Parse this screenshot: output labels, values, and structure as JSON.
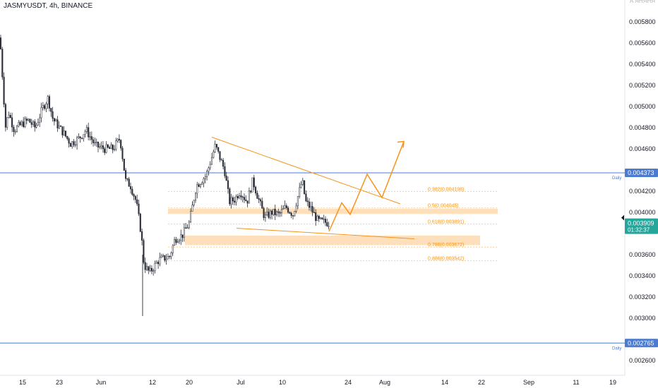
{
  "header": {
    "symbol": "JASMYUSDT, 4h, BINANCE",
    "top_right_fragment": "A ЯНЯНЯ"
  },
  "colors": {
    "up": "#26a69a",
    "down": "#ef5350",
    "candle": "#2a2e39",
    "drawing": "#f7931a",
    "zone": "#fddcb5",
    "horizontal_line": "#4a7bd0",
    "price_badge": "#26a69a"
  },
  "chart_data": {
    "type": "candlestick",
    "symbol": "JASMYUSDT",
    "interval": "4h",
    "exchange": "BINANCE",
    "ylim": [
      0.0025,
      0.0059
    ],
    "y_ticks": [
      "0.005800",
      "0.005600",
      "0.005400",
      "0.005200",
      "0.005000",
      "0.004800",
      "0.004600",
      "0.004200",
      "0.004000",
      "0.003600",
      "0.003400",
      "0.003200",
      "0.003000",
      "0.002600"
    ],
    "x_ticks": [
      "15",
      "23",
      "Jun",
      "12",
      "20",
      "Jul",
      "10",
      "24",
      "Aug",
      "14",
      "22",
      "Sep",
      "11",
      "19"
    ],
    "grid": false,
    "price_path": [
      {
        "t": 0,
        "p": 0.00565
      },
      {
        "t": 8,
        "p": 0.0048
      },
      {
        "t": 12,
        "p": 0.00495
      },
      {
        "t": 20,
        "p": 0.00478
      },
      {
        "t": 30,
        "p": 0.00483
      },
      {
        "t": 40,
        "p": 0.00487
      },
      {
        "t": 50,
        "p": 0.0048
      },
      {
        "t": 60,
        "p": 0.00498
      },
      {
        "t": 68,
        "p": 0.00508
      },
      {
        "t": 75,
        "p": 0.00488
      },
      {
        "t": 90,
        "p": 0.00475
      },
      {
        "t": 100,
        "p": 0.00465
      },
      {
        "t": 112,
        "p": 0.0047
      },
      {
        "t": 122,
        "p": 0.00478
      },
      {
        "t": 135,
        "p": 0.00463
      },
      {
        "t": 148,
        "p": 0.0046
      },
      {
        "t": 160,
        "p": 0.0046
      },
      {
        "t": 170,
        "p": 0.0047
      },
      {
        "t": 178,
        "p": 0.0043
      },
      {
        "t": 185,
        "p": 0.00425
      },
      {
        "t": 193,
        "p": 0.0041
      },
      {
        "t": 200,
        "p": 0.0038
      },
      {
        "t": 204,
        "p": 0.0035
      },
      {
        "t": 212,
        "p": 0.00343
      },
      {
        "t": 225,
        "p": 0.00355
      },
      {
        "t": 240,
        "p": 0.00358
      },
      {
        "t": 248,
        "p": 0.00375
      },
      {
        "t": 258,
        "p": 0.00378
      },
      {
        "t": 268,
        "p": 0.0039
      },
      {
        "t": 278,
        "p": 0.00425
      },
      {
        "t": 292,
        "p": 0.00435
      },
      {
        "t": 305,
        "p": 0.00463
      },
      {
        "t": 318,
        "p": 0.0044
      },
      {
        "t": 325,
        "p": 0.0041
      },
      {
        "t": 332,
        "p": 0.00412
      },
      {
        "t": 340,
        "p": 0.0042
      },
      {
        "t": 350,
        "p": 0.0041
      },
      {
        "t": 358,
        "p": 0.0043
      },
      {
        "t": 365,
        "p": 0.00415
      },
      {
        "t": 375,
        "p": 0.00395
      },
      {
        "t": 385,
        "p": 0.004
      },
      {
        "t": 395,
        "p": 0.00398
      },
      {
        "t": 405,
        "p": 0.00405
      },
      {
        "t": 415,
        "p": 0.00398
      },
      {
        "t": 428,
        "p": 0.0043
      },
      {
        "t": 433,
        "p": 0.0041
      },
      {
        "t": 440,
        "p": 0.00404
      },
      {
        "t": 450,
        "p": 0.00392
      },
      {
        "t": 466,
        "p": 0.0039
      }
    ],
    "spike_low": 0.00302,
    "horizontal_lines": [
      {
        "price": 0.004373,
        "price_label": "0.004373",
        "label": "Daily"
      },
      {
        "price": 0.002765,
        "price_label": "0.002765",
        "label": "Daily"
      }
    ],
    "current_price": {
      "price": 0.003909,
      "price_label": "0.003909",
      "countdown": "01:32:37"
    },
    "fib_levels": [
      {
        "price": 0.004198,
        "label": "0.382(0.004198)"
      },
      {
        "price": 0.004045,
        "label": "0.5(0.004045)"
      },
      {
        "price": 0.003891,
        "label": "0.618(0.003891)"
      },
      {
        "price": 0.003672,
        "label": "0.786(0.003672)"
      },
      {
        "price": 0.003542,
        "label": "0.886(0.003542)"
      }
    ],
    "zones": [
      {
        "y_low": 0.003985,
        "y_high": 0.004035,
        "x_start": 238,
        "x_end": 705
      },
      {
        "y_low": 0.00369,
        "y_high": 0.00378,
        "x_start": 262,
        "x_end": 680
      }
    ],
    "trendlines": [
      {
        "x1": 300,
        "y1": 0.00471,
        "x2": 567,
        "y2": 0.00408
      },
      {
        "x1": 335,
        "y1": 0.00385,
        "x2": 587,
        "y2": 0.00375
      }
    ],
    "projection_path": [
      {
        "x": 466,
        "y": 0.00382
      },
      {
        "x": 484,
        "y": 0.00409
      },
      {
        "x": 496,
        "y": 0.00398
      },
      {
        "x": 520,
        "y": 0.00436
      },
      {
        "x": 541,
        "y": 0.00414
      },
      {
        "x": 572,
        "y": 0.00467
      }
    ]
  }
}
